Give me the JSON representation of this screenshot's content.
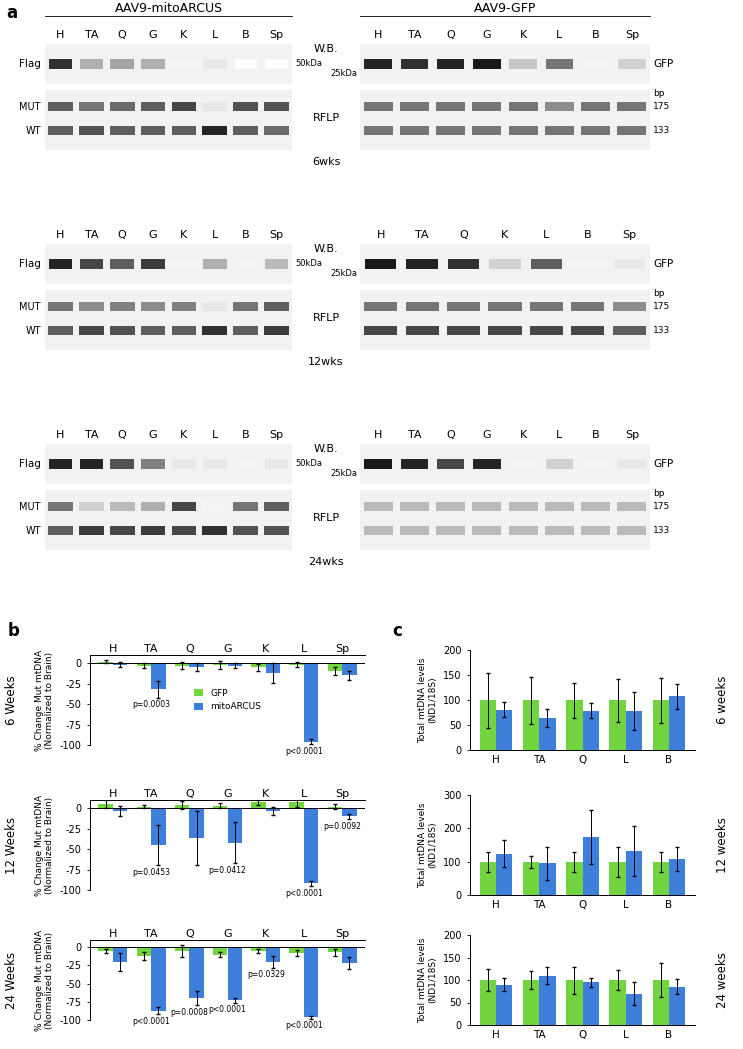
{
  "panel_a": {
    "label": "a",
    "header_left": "AAV9-mitoARCUS",
    "header_right": "AAV9-GFP",
    "wb_label": "W.B.",
    "rflp_label": "RFLP",
    "flag_label": "Flag",
    "gfp_label": "GFP",
    "mut_label": "MUT",
    "wt_label": "WT",
    "bp_labels": [
      "bp",
      "175",
      "133"
    ],
    "rows": [
      {
        "time": "6wks",
        "left": {
          "lanes": [
            "H",
            "TA",
            "Q",
            "G",
            "K",
            "L",
            "B",
            "Sp"
          ],
          "wb_marker": "50kDa",
          "wb": [
            0.9,
            0.35,
            0.4,
            0.35,
            0.05,
            0.1,
            0.0,
            0.0
          ],
          "rflp_mut": [
            0.7,
            0.6,
            0.65,
            0.7,
            0.8,
            0.1,
            0.75,
            0.75
          ],
          "rflp_wt": [
            0.7,
            0.75,
            0.7,
            0.7,
            0.7,
            0.95,
            0.7,
            0.65
          ]
        },
        "right": {
          "lanes": [
            "H",
            "TA",
            "Q",
            "G",
            "K",
            "L",
            "B",
            "Sp"
          ],
          "wb_marker": "25kDa",
          "wb": [
            0.95,
            0.9,
            0.95,
            1.0,
            0.25,
            0.6,
            0.05,
            0.2
          ],
          "rflp_mut": [
            0.6,
            0.6,
            0.6,
            0.6,
            0.6,
            0.5,
            0.6,
            0.6
          ],
          "rflp_wt": [
            0.6,
            0.6,
            0.6,
            0.6,
            0.6,
            0.6,
            0.6,
            0.6
          ]
        }
      },
      {
        "time": "12wks",
        "left": {
          "lanes": [
            "H",
            "TA",
            "Q",
            "G",
            "K",
            "L",
            "B",
            "Sp"
          ],
          "wb_marker": "50kDa",
          "wb": [
            0.95,
            0.8,
            0.7,
            0.85,
            0.05,
            0.35,
            0.05,
            0.3
          ],
          "rflp_mut": [
            0.6,
            0.5,
            0.55,
            0.5,
            0.55,
            0.1,
            0.6,
            0.7
          ],
          "rflp_wt": [
            0.7,
            0.8,
            0.75,
            0.7,
            0.7,
            0.9,
            0.7,
            0.85
          ]
        },
        "right": {
          "lanes": [
            "H",
            "TA",
            "Q",
            "K",
            "L",
            "B",
            "Sp"
          ],
          "wb_marker": "25kDa",
          "wb": [
            1.0,
            0.95,
            0.9,
            0.2,
            0.7,
            0.05,
            0.1
          ],
          "rflp_mut": [
            0.6,
            0.6,
            0.6,
            0.6,
            0.6,
            0.6,
            0.5
          ],
          "rflp_wt": [
            0.8,
            0.8,
            0.8,
            0.8,
            0.8,
            0.8,
            0.7
          ]
        }
      },
      {
        "time": "24wks",
        "left": {
          "lanes": [
            "H",
            "TA",
            "Q",
            "G",
            "K",
            "L",
            "B",
            "Sp"
          ],
          "wb_marker": "50kDa",
          "wb": [
            0.95,
            0.95,
            0.75,
            0.55,
            0.1,
            0.1,
            0.05,
            0.1
          ],
          "rflp_mut": [
            0.6,
            0.2,
            0.3,
            0.35,
            0.8,
            0.05,
            0.6,
            0.7
          ],
          "rflp_wt": [
            0.7,
            0.85,
            0.8,
            0.85,
            0.8,
            0.9,
            0.75,
            0.75
          ]
        },
        "right": {
          "lanes": [
            "H",
            "TA",
            "Q",
            "G",
            "K",
            "L",
            "B",
            "Sp"
          ],
          "wb_marker": "25kDa",
          "wb": [
            1.0,
            0.95,
            0.8,
            0.95,
            0.05,
            0.2,
            0.05,
            0.1
          ],
          "rflp_mut": [
            0.3,
            0.3,
            0.3,
            0.3,
            0.3,
            0.3,
            0.3,
            0.3
          ],
          "rflp_wt": [
            0.3,
            0.3,
            0.3,
            0.3,
            0.3,
            0.3,
            0.3,
            0.3
          ]
        }
      }
    ]
  },
  "chart_data": [
    {
      "type": "bar",
      "panel": "b",
      "title": "6 Weeks",
      "ylabel": "% Change Mut mtDNA\n(Normalized to Brain)",
      "categories": [
        "H",
        "TA",
        "Q",
        "G",
        "K",
        "L",
        "Sp"
      ],
      "ylim": [
        -100,
        10
      ],
      "yticks": [
        0,
        -25,
        -50,
        -75,
        -100
      ],
      "legend": "center",
      "series": [
        {
          "name": "GFP",
          "color": "#72d43f",
          "values": [
            2,
            -3,
            -3,
            -2,
            -5,
            -2,
            -10
          ],
          "errors": [
            2,
            3,
            4,
            5,
            4,
            3,
            5
          ]
        },
        {
          "name": "mitoARCUS",
          "color": "#3f7fdc",
          "values": [
            -2,
            -32,
            -5,
            -3,
            -12,
            -96,
            -15
          ],
          "errors": [
            3,
            10,
            5,
            3,
            12,
            3,
            6
          ]
        }
      ],
      "annotations": [
        {
          "category": "TA",
          "text": "p=0.0003"
        },
        {
          "category": "L",
          "text": "p<0.0001"
        }
      ]
    },
    {
      "type": "bar",
      "title": "12 Weeks",
      "ylabel": "% Change Mut mtDNA\n(Normalized to Brain)",
      "categories": [
        "H",
        "TA",
        "Q",
        "G",
        "K",
        "L",
        "Sp"
      ],
      "ylim": [
        -100,
        10
      ],
      "yticks": [
        0,
        -25,
        -50,
        -75,
        -100
      ],
      "series": [
        {
          "name": "GFP",
          "color": "#72d43f",
          "values": [
            5,
            2,
            4,
            3,
            7,
            8,
            2
          ],
          "errors": [
            5,
            2,
            5,
            3,
            3,
            6,
            3
          ]
        },
        {
          "name": "mitoARCUS",
          "color": "#3f7fdc",
          "values": [
            -3,
            -45,
            -37,
            -42,
            -3,
            -92,
            -10
          ],
          "errors": [
            6,
            25,
            33,
            25,
            5,
            3,
            3
          ]
        }
      ],
      "annotations": [
        {
          "category": "TA",
          "text": "p=0.0453"
        },
        {
          "category": "G",
          "text": "p=0.0412"
        },
        {
          "category": "L",
          "text": "p<0.0001"
        },
        {
          "category": "Sp",
          "text": "p=0.0092"
        }
      ]
    },
    {
      "type": "bar",
      "title": "24 Weeks",
      "ylabel": "% Change Mut mtDNA\n(Normalized to Brain)",
      "categories": [
        "H",
        "TA",
        "Q",
        "G",
        "K",
        "L",
        "Sp"
      ],
      "ylim": [
        -100,
        10
      ],
      "yticks": [
        0,
        -25,
        -50,
        -75,
        -100
      ],
      "series": [
        {
          "name": "GFP",
          "color": "#72d43f",
          "values": [
            -5,
            -12,
            -5,
            -10,
            -5,
            -8,
            -7
          ],
          "errors": [
            3,
            5,
            8,
            4,
            3,
            4,
            5
          ]
        },
        {
          "name": "mitoARCUS",
          "color": "#3f7fdc",
          "values": [
            -20,
            -87,
            -70,
            -73,
            -20,
            -96,
            -22
          ],
          "errors": [
            12,
            5,
            10,
            3,
            8,
            2,
            8
          ]
        }
      ],
      "annotations": [
        {
          "category": "TA",
          "text": "p<0.0001"
        },
        {
          "category": "Q",
          "text": "p=0.0008"
        },
        {
          "category": "G",
          "text": "p<0.0001"
        },
        {
          "category": "K",
          "text": "p=0.0329"
        },
        {
          "category": "L",
          "text": "p<0.0001"
        }
      ]
    },
    {
      "type": "bar",
      "panel": "c",
      "title": "6 weeks",
      "ylabel": "Total mtDNA levels\n(ND1/18S)",
      "categories": [
        "H",
        "TA",
        "Q",
        "L",
        "B"
      ],
      "ylim": [
        0,
        200
      ],
      "yticks": [
        0,
        50,
        100,
        150,
        200
      ],
      "series": [
        {
          "name": "GFP",
          "color": "#72d43f",
          "values": [
            100,
            100,
            100,
            100,
            100
          ],
          "errors": [
            55,
            47,
            35,
            43,
            45
          ]
        },
        {
          "name": "mitoARCUS",
          "color": "#3f7fdc",
          "values": [
            81,
            65,
            79,
            78,
            108
          ],
          "errors": [
            15,
            18,
            15,
            38,
            25
          ]
        }
      ]
    },
    {
      "type": "bar",
      "title": "12 weeks",
      "ylabel": "Total mtDNA levels\n(ND1/18S)",
      "categories": [
        "H",
        "TA",
        "Q",
        "L",
        "B"
      ],
      "ylim": [
        0,
        300
      ],
      "yticks": [
        0,
        100,
        200,
        300
      ],
      "series": [
        {
          "name": "GFP",
          "color": "#72d43f",
          "values": [
            100,
            100,
            100,
            100,
            100
          ],
          "errors": [
            30,
            18,
            30,
            45,
            30
          ]
        },
        {
          "name": "mitoARCUS",
          "color": "#3f7fdc",
          "values": [
            124,
            95,
            174,
            132,
            108
          ],
          "errors": [
            40,
            50,
            80,
            75,
            35
          ]
        }
      ]
    },
    {
      "type": "bar",
      "title": "24 weeks",
      "ylabel": "Total mtDNA levels\n(ND1/18S)",
      "categories": [
        "H",
        "TA",
        "Q",
        "L",
        "B"
      ],
      "ylim": [
        0,
        200
      ],
      "yticks": [
        0,
        50,
        100,
        150,
        200
      ],
      "series": [
        {
          "name": "GFP",
          "color": "#72d43f",
          "values": [
            100,
            100,
            100,
            100,
            100
          ],
          "errors": [
            25,
            20,
            30,
            22,
            38
          ]
        },
        {
          "name": "mitoARCUS",
          "color": "#3f7fdc",
          "values": [
            90,
            110,
            95,
            70,
            85
          ],
          "errors": [
            15,
            18,
            10,
            25,
            17
          ]
        }
      ]
    }
  ]
}
